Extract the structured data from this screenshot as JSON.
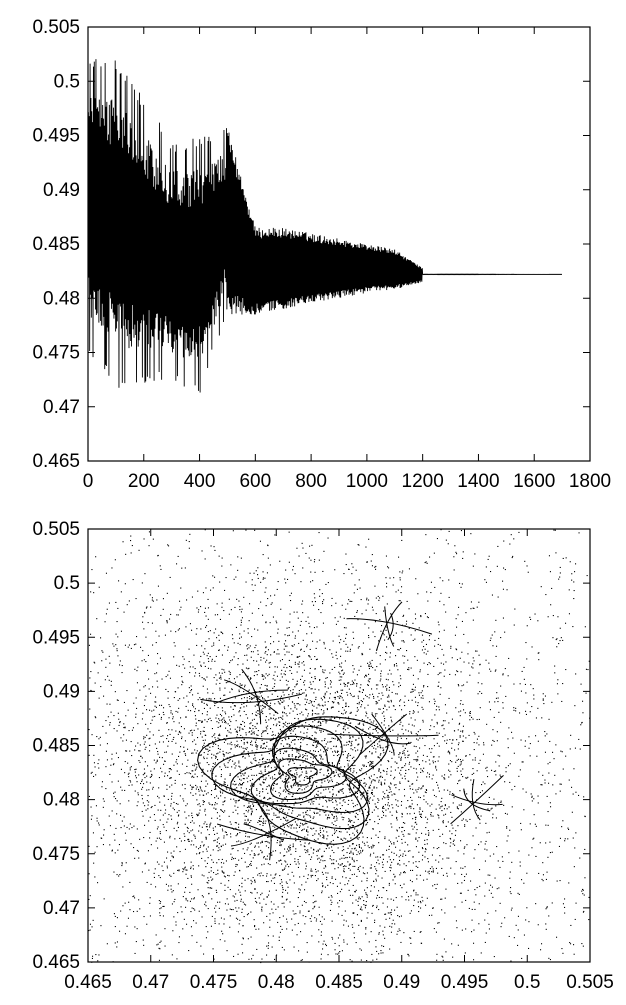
{
  "chart_data": [
    {
      "type": "line",
      "title": "",
      "xlabel": "",
      "ylabel": "",
      "xlim": [
        0,
        1800
      ],
      "ylim": [
        0.465,
        0.505
      ],
      "x_ticks": [
        "0",
        "200",
        "400",
        "600",
        "800",
        "1000",
        "1200",
        "1400",
        "1600",
        "1800"
      ],
      "y_ticks": [
        "0.465",
        "0.47",
        "0.475",
        "0.48",
        "0.485",
        "0.49",
        "0.495",
        "0.5",
        "0.505"
      ],
      "grid": false,
      "series": [
        {
          "equilibrium": 0.4822,
          "envelope_upper": {
            "x": [
              0,
              100,
              200,
              300,
              400,
              500,
              600,
              700,
              800,
              900,
              1000,
              1100,
              1200,
              1700
            ],
            "y": [
              0.502,
              0.5025,
              0.4985,
              0.4945,
              0.495,
              0.496,
              0.4865,
              0.4865,
              0.486,
              0.4855,
              0.485,
              0.4845,
              0.4828,
              0.4822
            ]
          },
          "envelope_lower": {
            "x": [
              0,
              100,
              200,
              300,
              400,
              500,
              600,
              700,
              800,
              900,
              1000,
              1100,
              1200,
              1700
            ],
            "y": [
              0.475,
              0.4715,
              0.472,
              0.472,
              0.471,
              0.4785,
              0.4785,
              0.479,
              0.4795,
              0.48,
              0.4805,
              0.4808,
              0.4815,
              0.4822
            ]
          }
        }
      ]
    },
    {
      "type": "scatter",
      "title": "",
      "xlabel": "",
      "ylabel": "",
      "xlim": [
        0.465,
        0.505
      ],
      "ylim": [
        0.465,
        0.505
      ],
      "x_ticks": [
        "0.465",
        "0.47",
        "0.475",
        "0.48",
        "0.485",
        "0.49",
        "0.495",
        "0.5",
        "0.505"
      ],
      "y_ticks": [
        "0.465",
        "0.47",
        "0.475",
        "0.48",
        "0.485",
        "0.49",
        "0.495",
        "0.5",
        "0.505"
      ],
      "grid": false,
      "series": [
        {
          "center": [
            0.4821,
            0.4823
          ],
          "scatter_spread": 0.0085,
          "spiral_radii": [
            0.0008,
            0.0015,
            0.0022,
            0.003,
            0.0038,
            0.0046,
            0.0054
          ],
          "curve_clusters": [
            {
              "x": 0.489,
              "y": 0.496
            },
            {
              "x": 0.478,
              "y": 0.4895
            },
            {
              "x": 0.496,
              "y": 0.48
            },
            {
              "x": 0.479,
              "y": 0.477
            },
            {
              "x": 0.4885,
              "y": 0.486
            }
          ]
        }
      ]
    }
  ]
}
